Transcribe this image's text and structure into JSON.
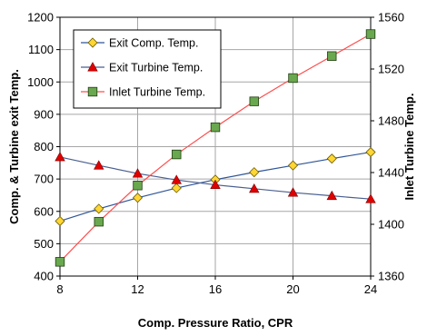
{
  "chart_data": {
    "type": "line",
    "xlabel": "Comp. Pressure  Ratio, CPR",
    "ylabel_left": "Comp. & Turbine exit Temp.",
    "ylabel_right": "Inlet Turbine Temp.",
    "x": [
      8,
      10,
      12,
      14,
      16,
      18,
      20,
      22,
      24
    ],
    "x_ticks": [
      "8",
      "12",
      "16",
      "20",
      "24"
    ],
    "xlim": [
      8,
      24
    ],
    "ylim_left": [
      400,
      1200
    ],
    "y_ticks_left": [
      "400",
      "500",
      "600",
      "700",
      "800",
      "900",
      "1000",
      "1100",
      "1200"
    ],
    "ylim_right": [
      1360,
      1560
    ],
    "y_ticks_right": [
      "1360",
      "1400",
      "1440",
      "1480",
      "1520",
      "1560"
    ],
    "grid": true,
    "legend_position": "top-left",
    "series": [
      {
        "name": "Exit Comp. Temp.",
        "axis": "left",
        "marker": "diamond",
        "line_color": "#2f5597",
        "marker_color": "#ffd633",
        "values": [
          570,
          608,
          642,
          672,
          698,
          721,
          742,
          763,
          783
        ]
      },
      {
        "name": "Exit Turbine Temp.",
        "axis": "left",
        "marker": "triangle",
        "line_color": "#4a5f8f",
        "marker_color": "#e00000",
        "values": [
          768,
          742,
          717,
          697,
          682,
          670,
          658,
          648,
          638
        ]
      },
      {
        "name": "Inlet Turbine Temp.",
        "axis": "right",
        "marker": "square",
        "line_color": "#ff4d4d",
        "marker_color": "#6aa84f",
        "values": [
          1371,
          1402,
          1430,
          1454,
          1475,
          1495,
          1513,
          1530,
          1547
        ]
      }
    ]
  }
}
